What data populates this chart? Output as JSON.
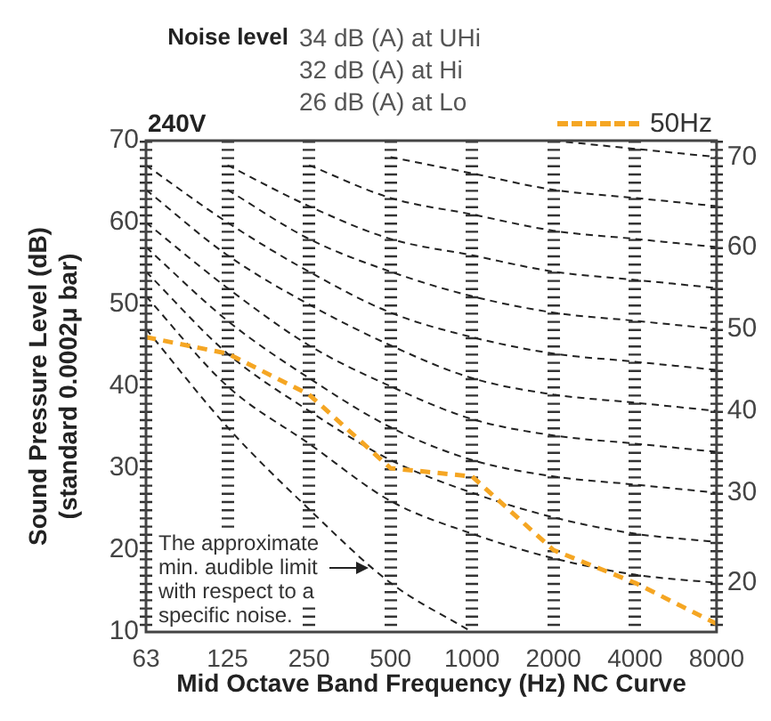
{
  "chart_data": {
    "type": "line",
    "title": "Noise level",
    "xlabel": "Mid Octave Band Frequency (Hz) NC Curve",
    "ylabel": "Sound Pressure Level (dB) (standard 0.0002μ bar)",
    "annotations": [
      "34 dB (A) at UHi",
      "32 dB (A) at Hi",
      "26 dB (A) at Lo",
      "240V",
      "The approximate min. audible limit with respect to a specific noise.",
      {
        "text": "70",
        "x": "8000",
        "y": 68
      },
      {
        "text": "60",
        "x": "8000",
        "y": 57
      },
      {
        "text": "50",
        "x": "8000",
        "y": 47
      },
      {
        "text": "40",
        "x": "8000",
        "y": 37
      },
      {
        "text": "30",
        "x": "8000",
        "y": 27
      },
      {
        "text": "20",
        "x": "8000",
        "y": 16
      }
    ],
    "categories": [
      "63",
      "125",
      "250",
      "500",
      "1000",
      "2000",
      "4000",
      "8000"
    ],
    "series": [
      {
        "color": "#222222",
        "values": [
          null,
          null,
          null,
          null,
          null,
          70,
          69,
          68
        ]
      },
      {
        "color": "#222222",
        "values": [
          null,
          null,
          null,
          68,
          66,
          64,
          63,
          62
        ]
      },
      {
        "color": "#222222",
        "values": [
          null,
          null,
          67,
          63,
          61,
          59,
          58,
          57
        ]
      },
      {
        "color": "#222222",
        "values": [
          null,
          67,
          62,
          58,
          56,
          54,
          53,
          52
        ]
      },
      {
        "color": "#222222",
        "values": [
          null,
          64,
          58,
          54,
          51,
          49,
          48,
          47
        ]
      },
      {
        "color": "#222222",
        "values": [
          67,
          60,
          54,
          49,
          46,
          44,
          43,
          42
        ]
      },
      {
        "color": "#222222",
        "values": [
          64,
          56,
          50,
          45,
          41,
          39,
          38,
          37
        ]
      },
      {
        "color": "#222222",
        "values": [
          60,
          52,
          45,
          40,
          36,
          34,
          33,
          32
        ]
      },
      {
        "color": "#222222",
        "values": [
          57,
          48,
          41,
          35,
          31,
          29,
          28,
          27
        ]
      },
      {
        "color": "#222222",
        "values": [
          54,
          44,
          37,
          31,
          27,
          24,
          22,
          21
        ]
      },
      {
        "color": "#222222",
        "values": [
          51,
          40,
          33,
          26,
          22,
          19,
          17,
          16
        ]
      },
      {
        "color": "#222222",
        "values": [
          47,
          35,
          25,
          16,
          10,
          null,
          null,
          null
        ]
      },
      {
        "name": "50Hz",
        "color": "#f5a623",
        "values": [
          46,
          44,
          39,
          30,
          29,
          20,
          16,
          11
        ]
      }
    ],
    "ylim": [
      10,
      70
    ],
    "yticks": [
      10,
      20,
      30,
      40,
      50,
      60,
      70
    ],
    "grid": "x",
    "legend": "top right",
    "marker": "none",
    "line_style": "dashed"
  }
}
